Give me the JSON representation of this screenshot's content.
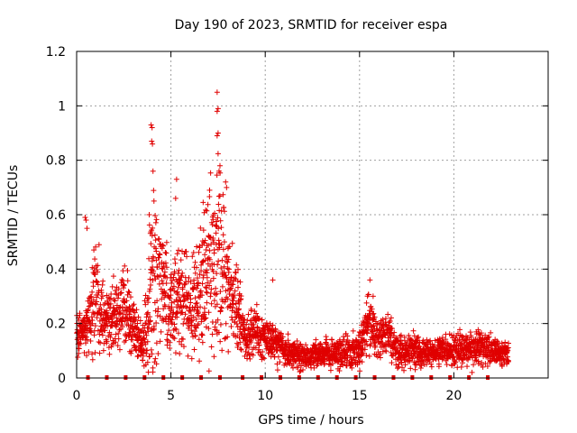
{
  "chart_data": {
    "type": "scatter",
    "title": "Day 190 of 2023, SRMTID for receiver espa",
    "xlabel": "GPS time / hours",
    "ylabel": "SRMTID / TECUs",
    "xlim": [
      0,
      25
    ],
    "ylim": [
      0,
      1.2
    ],
    "x_ticks": [
      0,
      5,
      10,
      15,
      20
    ],
    "y_ticks": [
      0,
      0.2,
      0.4,
      0.6,
      0.8,
      1,
      1.2
    ],
    "x_tick_labels": [
      "0",
      "5",
      "10",
      "15",
      "20"
    ],
    "y_tick_labels": [
      "0",
      "0.2",
      "0.4",
      "0.6",
      "0.8",
      "1",
      "1.2"
    ],
    "grid": true,
    "marker": "+",
    "series_color": "#e00000",
    "envelope": {
      "description": "approximate per-hour central level and spread of the plotted points",
      "hours": [
        0,
        0.5,
        1,
        1.5,
        2,
        2.5,
        3,
        3.5,
        4,
        4.5,
        5,
        5.5,
        6,
        6.5,
        7,
        7.5,
        8,
        8.5,
        9,
        9.5,
        10,
        10.5,
        11,
        12,
        13,
        14,
        15,
        15.5,
        16,
        16.5,
        17,
        18,
        19,
        20,
        21,
        22,
        22.9
      ],
      "center": [
        0.15,
        0.17,
        0.3,
        0.2,
        0.22,
        0.25,
        0.18,
        0.13,
        0.3,
        0.35,
        0.25,
        0.3,
        0.27,
        0.3,
        0.4,
        0.42,
        0.35,
        0.25,
        0.15,
        0.16,
        0.14,
        0.14,
        0.1,
        0.08,
        0.09,
        0.09,
        0.1,
        0.22,
        0.14,
        0.17,
        0.1,
        0.1,
        0.09,
        0.1,
        0.11,
        0.1,
        0.09
      ],
      "spread": [
        0.07,
        0.07,
        0.2,
        0.08,
        0.12,
        0.15,
        0.09,
        0.07,
        0.35,
        0.18,
        0.12,
        0.18,
        0.13,
        0.17,
        0.27,
        0.35,
        0.2,
        0.12,
        0.08,
        0.08,
        0.07,
        0.07,
        0.05,
        0.04,
        0.04,
        0.05,
        0.06,
        0.1,
        0.06,
        0.08,
        0.05,
        0.05,
        0.04,
        0.05,
        0.06,
        0.05,
        0.04
      ]
    },
    "outliers": [
      {
        "x": 3.95,
        "y": 0.93
      },
      {
        "x": 4.0,
        "y": 0.92
      },
      {
        "x": 3.98,
        "y": 0.87
      },
      {
        "x": 4.02,
        "y": 0.86
      },
      {
        "x": 4.05,
        "y": 0.76
      },
      {
        "x": 4.1,
        "y": 0.65
      },
      {
        "x": 7.45,
        "y": 1.05
      },
      {
        "x": 7.5,
        "y": 0.99
      },
      {
        "x": 7.45,
        "y": 0.98
      },
      {
        "x": 7.5,
        "y": 0.9
      },
      {
        "x": 7.45,
        "y": 0.89
      },
      {
        "x": 7.6,
        "y": 0.78
      },
      {
        "x": 7.55,
        "y": 0.76
      },
      {
        "x": 5.3,
        "y": 0.73
      },
      {
        "x": 5.25,
        "y": 0.66
      },
      {
        "x": 7.05,
        "y": 0.69
      },
      {
        "x": 7.9,
        "y": 0.72
      },
      {
        "x": 7.95,
        "y": 0.7
      },
      {
        "x": 0.45,
        "y": 0.59
      },
      {
        "x": 0.5,
        "y": 0.58
      },
      {
        "x": 10.4,
        "y": 0.36
      },
      {
        "x": 15.55,
        "y": 0.36
      },
      {
        "x": 3.85,
        "y": 0.6
      },
      {
        "x": 0.55,
        "y": 0.55
      }
    ],
    "baseline_markers_y": 0,
    "baseline_markers_x": [
      0.6,
      1.6,
      2.6,
      3.6,
      4.6,
      5.6,
      6.6,
      7.6,
      8.8,
      9.8,
      10.8,
      11.8,
      12.8,
      13.8,
      14.8,
      15.8,
      16.8,
      17.8,
      18.8,
      19.8,
      20.8,
      21.8
    ]
  }
}
